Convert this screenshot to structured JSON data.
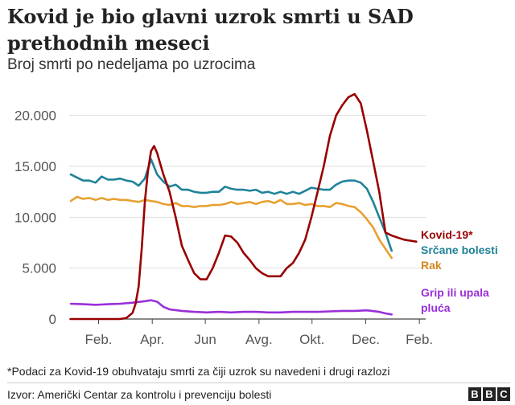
{
  "title": "Kovid je bio glavni uzrok smrti u SAD prethodnih meseci",
  "subtitle": "Broj smrti po nedeljama po uzrocima",
  "footnote": "*Podaci za Kovid-19 obuhvataju smrti za čiji uzrok su navedeni i drugi razlozi",
  "source": "Izvor: Američki Centar za kontrolu i prevenciju bolesti",
  "logo": [
    "B",
    "B",
    "C"
  ],
  "chart_data": {
    "type": "line",
    "title": "Kovid je bio glavni uzrok smrti u SAD prethodnih meseci",
    "subtitle": "Broj smrti po nedeljama po uzrocima",
    "xlabel": "",
    "ylabel": "",
    "x_ticks": [
      "Feb.",
      "Apr.",
      "Jun",
      "Avg.",
      "Okt.",
      "Dec.",
      "Feb."
    ],
    "x_tick_weeks": [
      4.5,
      13.2,
      21.8,
      30.5,
      39.1,
      47.8,
      56.5
    ],
    "y_ticks": [
      0,
      5000,
      10000,
      15000,
      20000
    ],
    "y_tick_labels": [
      "0",
      "5.000",
      "10.000",
      "15.000",
      "20.000"
    ],
    "ylim": [
      0,
      22500
    ],
    "xlim": [
      0,
      57
    ],
    "grid": true,
    "legend": "labels at line ends (right)",
    "series": [
      {
        "name": "Kovid-19*",
        "color": "#990000",
        "label_color": "#990000",
        "x": [
          0,
          2,
          4,
          6,
          8,
          9,
          10,
          10.5,
          11,
          11.5,
          12,
          12.5,
          13,
          13.5,
          14,
          15,
          16,
          17,
          18,
          19,
          20,
          21,
          22,
          23,
          24,
          25,
          26,
          27,
          28,
          29,
          30,
          31,
          32,
          33,
          34,
          35,
          36,
          37,
          38,
          39,
          40,
          41,
          42,
          43,
          44,
          45,
          46,
          47,
          48,
          49,
          50,
          51,
          52,
          53,
          54,
          55,
          56
        ],
        "y": [
          0,
          0,
          0,
          0,
          0,
          100,
          600,
          1500,
          3200,
          7000,
          11500,
          14500,
          16500,
          17000,
          16300,
          14200,
          12500,
          10000,
          7200,
          5800,
          4500,
          3900,
          3900,
          5000,
          6500,
          8200,
          8100,
          7500,
          6500,
          5800,
          5000,
          4500,
          4200,
          4200,
          4200,
          5000,
          5500,
          6500,
          7800,
          10000,
          12500,
          15000,
          18000,
          20000,
          21000,
          21800,
          22100,
          21200,
          18500,
          15500,
          12500,
          8500,
          8200,
          8000,
          7800,
          7700,
          7600
        ]
      },
      {
        "name": "Srčane bolesti",
        "color": "#1f8299",
        "label_color": "#1f8299",
        "x": [
          0,
          1,
          2,
          3,
          4,
          5,
          6,
          7,
          8,
          9,
          10,
          11,
          12,
          13,
          14,
          15,
          16,
          17,
          18,
          19,
          20,
          21,
          22,
          23,
          24,
          25,
          26,
          27,
          28,
          29,
          30,
          31,
          32,
          33,
          34,
          35,
          36,
          37,
          38,
          39,
          40,
          41,
          42,
          43,
          44,
          45,
          46,
          47,
          48,
          49,
          50,
          51,
          52
        ],
        "y": [
          14200,
          13900,
          13600,
          13600,
          13400,
          14000,
          13700,
          13700,
          13800,
          13600,
          13500,
          13100,
          13800,
          15700,
          14200,
          13500,
          13000,
          13200,
          12700,
          12700,
          12500,
          12400,
          12400,
          12500,
          12500,
          13000,
          12800,
          12700,
          12700,
          12600,
          12700,
          12400,
          12500,
          12300,
          12500,
          12300,
          12500,
          12300,
          12600,
          12900,
          12800,
          12700,
          12700,
          13200,
          13500,
          13600,
          13600,
          13400,
          12800,
          11500,
          10000,
          8500,
          6700
        ]
      },
      {
        "name": "Rak",
        "color": "#e8a02f",
        "label_color": "#d4861c",
        "x": [
          0,
          1,
          2,
          3,
          4,
          5,
          6,
          7,
          8,
          9,
          10,
          11,
          12,
          13,
          14,
          15,
          16,
          17,
          18,
          19,
          20,
          21,
          22,
          23,
          24,
          25,
          26,
          27,
          28,
          29,
          30,
          31,
          32,
          33,
          34,
          35,
          36,
          37,
          38,
          39,
          40,
          41,
          42,
          43,
          44,
          45,
          46,
          47,
          48,
          49,
          50,
          51,
          52
        ],
        "y": [
          11600,
          12000,
          11800,
          11900,
          11700,
          11900,
          11700,
          11800,
          11700,
          11700,
          11600,
          11500,
          11700,
          11600,
          11500,
          11300,
          11200,
          11400,
          11100,
          11100,
          11000,
          11100,
          11100,
          11200,
          11200,
          11300,
          11500,
          11300,
          11400,
          11500,
          11300,
          11500,
          11600,
          11400,
          11700,
          11300,
          11300,
          11400,
          11200,
          11300,
          11100,
          11100,
          11000,
          11400,
          11300,
          11100,
          11000,
          10500,
          9800,
          9000,
          7800,
          6900,
          6000
        ]
      },
      {
        "name": "Grip ili upala pluća",
        "color": "#9a2fd8",
        "label_color": "#9a2fd8",
        "x": [
          0,
          2,
          4,
          6,
          8,
          10,
          12,
          13,
          14,
          15,
          16,
          18,
          20,
          22,
          24,
          26,
          28,
          30,
          32,
          34,
          36,
          38,
          40,
          42,
          44,
          46,
          48,
          50,
          51,
          52
        ],
        "y": [
          1500,
          1450,
          1400,
          1450,
          1500,
          1600,
          1750,
          1850,
          1700,
          1200,
          950,
          800,
          700,
          650,
          700,
          650,
          700,
          700,
          650,
          650,
          700,
          700,
          700,
          750,
          800,
          800,
          850,
          700,
          550,
          450
        ]
      }
    ]
  }
}
